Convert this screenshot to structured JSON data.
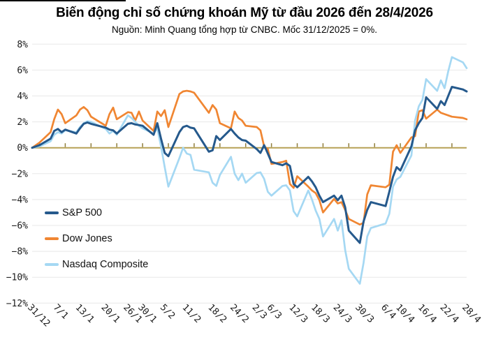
{
  "header": {
    "title": "Biến động chỉ số chứng khoán Mỹ từ đầu 2026 đến 28/4/2026",
    "subtitle": "Nguồn: Minh Quang tổng hợp từ CNBC. Mốc 31/12/2025 = 0%."
  },
  "chart_data": {
    "type": "line",
    "title": "Biến động chỉ số chứng khoán Mỹ từ đầu 2026 đến 28/4/2026",
    "subtitle": "Nguồn: Minh Quang tổng hợp từ CNBC. Mốc 31/12/2025 = 0%.",
    "grid_on": true,
    "grid_color": "#e8e8e8",
    "text_color": "#1a1a1a",
    "ylim": [
      -12,
      8
    ],
    "baseline": {
      "value": 0,
      "color": "#b7a156",
      "tick_color": "#8f7d3b"
    },
    "y_ticks": {
      "values": [
        8,
        6,
        4,
        2,
        0,
        -2,
        -4,
        -6,
        -8,
        -10,
        -12
      ],
      "labels": [
        "8%",
        "6%",
        "4%",
        "2%",
        "0%",
        "−2%",
        "−4%",
        "−6%",
        "−8%",
        "−10%",
        "−12%"
      ]
    },
    "x_axis": {
      "unit": "days since 31/12/2025",
      "range_days": [
        0,
        118
      ],
      "tick_labels": [
        "31/12",
        "7/1",
        "13/1",
        "20/1",
        "26/1",
        "30/1",
        "5/2",
        "11/2",
        "18/2",
        "24/2",
        "2/3",
        "6/3",
        "12/3",
        "18/3",
        "24/3",
        "30/3",
        "6/4",
        "10/4",
        "16/4",
        "22/4",
        "28/4"
      ],
      "tick_days": [
        0,
        7,
        13,
        20,
        26,
        30,
        36,
        42,
        49,
        55,
        61,
        65,
        71,
        77,
        83,
        89,
        96,
        100,
        106,
        112,
        118
      ],
      "minor_tick_days": [
        2,
        9,
        16,
        23,
        30,
        37,
        44,
        51,
        58,
        65,
        72,
        79,
        86,
        93,
        100,
        107,
        114
      ]
    },
    "x_days": [
      0,
      2,
      5,
      6,
      7,
      8,
      9,
      12,
      13,
      14,
      15,
      16,
      20,
      21,
      22,
      23,
      26,
      27,
      28,
      29,
      30,
      33,
      34,
      35,
      36,
      37,
      40,
      41,
      42,
      43,
      44,
      48,
      49,
      50,
      51,
      54,
      55,
      56,
      57,
      58,
      61,
      62,
      63,
      64,
      65,
      68,
      69,
      70,
      71,
      72,
      75,
      76,
      77,
      78,
      79,
      82,
      83,
      84,
      85,
      86,
      89,
      90,
      91,
      92,
      96,
      97,
      98,
      99,
      100,
      103,
      104,
      105,
      106,
      107,
      110,
      111,
      112,
      113,
      114,
      117,
      118
    ],
    "series": [
      {
        "name": "Dow Jones",
        "color": "#f08632",
        "width": 2.7,
        "values": [
          0,
          0.4,
          1.2,
          2.2,
          2.95,
          2.6,
          1.9,
          2.5,
          2.95,
          3.15,
          2.9,
          2.4,
          1.7,
          2.6,
          3.1,
          2.2,
          2.75,
          2.7,
          2.1,
          2.8,
          2.1,
          1.3,
          2.8,
          2.45,
          2.9,
          1.6,
          4.15,
          4.35,
          4.4,
          4.35,
          4.25,
          2.7,
          3.3,
          2.95,
          1.9,
          1.5,
          2.8,
          2.3,
          2.1,
          1.7,
          1.6,
          1.35,
          0.1,
          -0.1,
          -1.25,
          -1.1,
          -1.0,
          -2.8,
          -3.1,
          -2.2,
          -3.0,
          -3.3,
          -3.5,
          -4.05,
          -5.0,
          -3.95,
          -4.3,
          -4.2,
          -4.8,
          -5.5,
          -5.93,
          -5.8,
          -3.6,
          -2.9,
          -3.05,
          -2.85,
          -0.3,
          0.2,
          -0.4,
          0.8,
          0.9,
          2.8,
          2.9,
          2.25,
          2.95,
          2.7,
          2.6,
          2.5,
          2.4,
          2.3,
          2.2
        ]
      },
      {
        "name": "Nasdaq Composite",
        "color": "#a5d8f3",
        "width": 2.7,
        "values": [
          0,
          0.1,
          0.5,
          1.0,
          1.2,
          1.1,
          1.35,
          1.2,
          1.6,
          1.9,
          2.05,
          2.0,
          1.45,
          1.1,
          1.3,
          1.0,
          2.5,
          2.3,
          2.0,
          1.7,
          1.5,
          1.1,
          1.5,
          0.1,
          -1.5,
          -3.0,
          -0.8,
          0.0,
          -0.45,
          -0.55,
          -1.7,
          -1.9,
          -2.7,
          -2.95,
          -2.1,
          -0.7,
          -2.0,
          -2.5,
          -2.0,
          -2.7,
          -1.95,
          -1.9,
          -2.4,
          -3.4,
          -3.7,
          -2.95,
          -2.9,
          -3.3,
          -4.9,
          -5.3,
          -3.3,
          -4.0,
          -4.85,
          -5.5,
          -6.85,
          -5.5,
          -6.4,
          -5.6,
          -7.9,
          -9.35,
          -10.5,
          -8.9,
          -6.85,
          -6.2,
          -5.85,
          -5.1,
          -3.0,
          -2.45,
          -2.25,
          -0.6,
          2.1,
          3.2,
          3.7,
          5.3,
          4.4,
          5.2,
          4.6,
          5.9,
          7.0,
          6.6,
          6.15
        ]
      },
      {
        "name": "S&P 500",
        "color": "#25598c",
        "width": 3,
        "values": [
          0,
          0.2,
          0.7,
          1.3,
          1.45,
          1.2,
          1.4,
          1.1,
          1.5,
          1.85,
          1.95,
          1.85,
          1.55,
          1.4,
          1.35,
          1.1,
          1.85,
          1.9,
          1.8,
          1.75,
          1.7,
          1.0,
          1.9,
          0.7,
          -0.4,
          -0.65,
          1.2,
          1.6,
          1.7,
          1.55,
          1.5,
          -0.3,
          -0.2,
          0.9,
          0.6,
          1.45,
          1.1,
          0.8,
          0.6,
          0.55,
          -0.1,
          -0.4,
          0.2,
          -0.45,
          -1.1,
          -1.35,
          -1.2,
          -1.4,
          -2.8,
          -3.05,
          -2.25,
          -2.6,
          -3.05,
          -3.7,
          -4.2,
          -3.7,
          -4.05,
          -3.7,
          -4.6,
          -6.4,
          -7.35,
          -5.7,
          -4.8,
          -4.2,
          -4.5,
          -3.4,
          -2.25,
          -1.5,
          -1.75,
          0.1,
          1.35,
          1.9,
          2.3,
          3.9,
          3.0,
          3.6,
          3.3,
          4.0,
          4.7,
          4.5,
          4.35
        ]
      }
    ],
    "legend": {
      "position": "inside-left",
      "items": [
        {
          "label": "S&P 500",
          "color": "#25598c"
        },
        {
          "label": "Dow Jones",
          "color": "#f08632"
        },
        {
          "label": "Nasdaq Composite",
          "color": "#a5d8f3"
        }
      ]
    }
  }
}
